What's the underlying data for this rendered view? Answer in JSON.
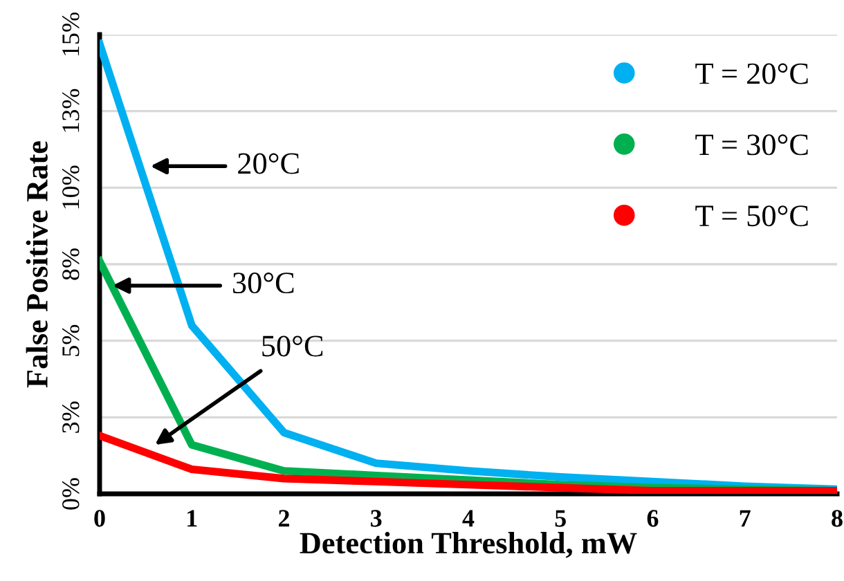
{
  "chart_data": {
    "type": "line",
    "xlabel": "Detection Threshold, mW",
    "ylabel": "False Positive Rate",
    "x": [
      0,
      1,
      2,
      3,
      4,
      5,
      6,
      7,
      8
    ],
    "series": [
      {
        "name": "T = 20°C",
        "color": "#00b0f0",
        "values": [
          14.7,
          5.5,
          2.0,
          1.0,
          0.75,
          0.55,
          0.4,
          0.25,
          0.15
        ]
      },
      {
        "name": "T = 30°C",
        "color": "#00b050",
        "values": [
          7.6,
          1.6,
          0.75,
          0.6,
          0.45,
          0.3,
          0.2,
          0.15,
          0.1
        ]
      },
      {
        "name": "T = 50°C",
        "color": "#ff0000",
        "values": [
          1.9,
          0.8,
          0.5,
          0.4,
          0.3,
          0.2,
          0.1,
          0.1,
          0.1
        ]
      }
    ],
    "xlim": [
      0,
      8
    ],
    "xticks": [
      0,
      1,
      2,
      3,
      4,
      5,
      6,
      7,
      8
    ],
    "ylim": [
      0,
      15
    ],
    "yticks": [
      {
        "value": 0,
        "label": "0%"
      },
      {
        "value": 2.5,
        "label": "3%"
      },
      {
        "value": 5,
        "label": "5%"
      },
      {
        "value": 7.5,
        "label": "8%"
      },
      {
        "value": 10,
        "label": "10%"
      },
      {
        "value": 12.5,
        "label": "13%"
      },
      {
        "value": 15,
        "label": "15%"
      }
    ],
    "annotations": [
      {
        "text": "20°C",
        "x": 0.55,
        "y": 10.7
      },
      {
        "text": "30°C",
        "x": 0.14,
        "y": 6.8
      },
      {
        "text": "50°C",
        "x": 0.6,
        "y": 1.6
      }
    ],
    "grid": "y",
    "legend": "top right",
    "marker": "none",
    "line_style": "solid"
  }
}
